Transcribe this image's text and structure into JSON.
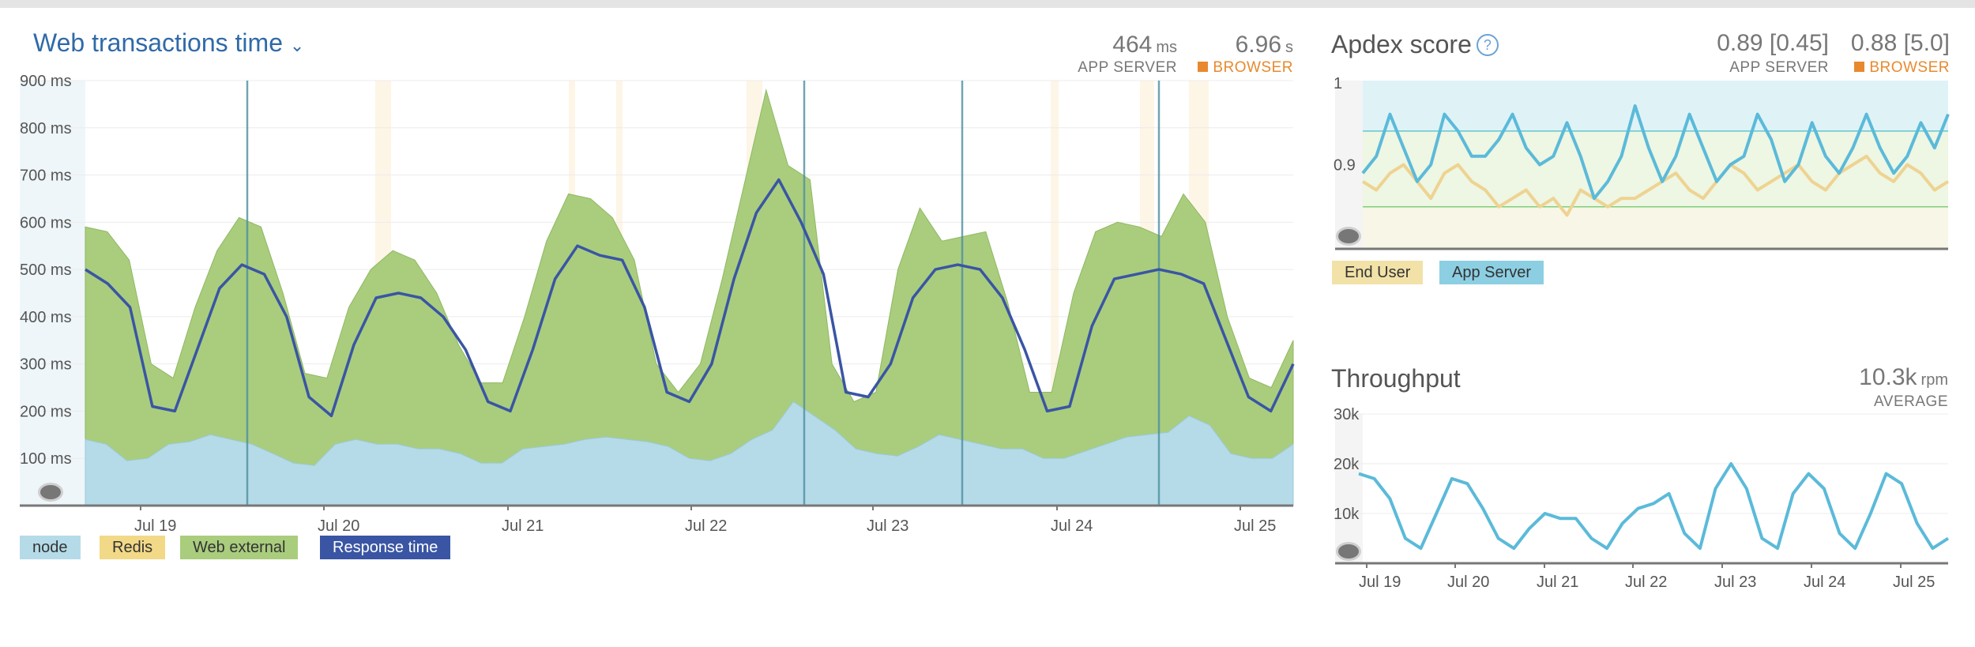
{
  "colors": {
    "node": "#b5dbe8",
    "redis": "#f2d987",
    "web_external": "#a9cd7d",
    "response_time": "#3a55a4",
    "app_server_line": "#5bbad9",
    "end_user_line": "#eed391",
    "accent_blue": "#2f6aa8",
    "browser_orange": "#e8892e"
  },
  "main_panel": {
    "title": "Web transactions time",
    "dropdown_icon": "chevron-down-icon",
    "app_server_value": "464",
    "app_server_unit": "ms",
    "app_server_caption": "APP SERVER",
    "browser_value": "6.96",
    "browser_unit": "s",
    "browser_caption": "BROWSER",
    "legend": [
      "node",
      "Redis",
      "Web external",
      "Response time"
    ]
  },
  "apdex_panel": {
    "title": "Apdex score",
    "help_icon": "question-circle-icon",
    "app_server_value": "0.89 [0.45]",
    "app_server_caption": "APP SERVER",
    "browser_value": "0.88 [5.0]",
    "browser_caption": "BROWSER",
    "legend": [
      "End User",
      "App Server"
    ]
  },
  "throughput_panel": {
    "title": "Throughput",
    "average_value": "10.3k",
    "average_unit": "rpm",
    "average_caption": "AVERAGE"
  },
  "chart_data": [
    {
      "type": "area",
      "title": "Web transactions time",
      "ylim": [
        0,
        900
      ],
      "yticks": [
        "900 ms",
        "800 ms",
        "700 ms",
        "600 ms",
        "500 ms",
        "400 ms",
        "300 ms",
        "200 ms",
        "100 ms"
      ],
      "xticks": [
        "Jul 19",
        "Jul 20",
        "Jul 21",
        "Jul 22",
        "Jul 23",
        "Jul 24",
        "Jul 25"
      ],
      "grid": true,
      "legend_position": "bottom-left",
      "series": [
        {
          "name": "node",
          "values": [
            140,
            130,
            95,
            100,
            130,
            135,
            150,
            140,
            130,
            110,
            90,
            85,
            130,
            140,
            130,
            130,
            120,
            120,
            110,
            90,
            90,
            120,
            125,
            130,
            140,
            145,
            140,
            135,
            125,
            100,
            95,
            110,
            140,
            160,
            220,
            190,
            160,
            120,
            110,
            105,
            125,
            150,
            140,
            130,
            120,
            120,
            100,
            100,
            115,
            130,
            145,
            150,
            155,
            190,
            170,
            110,
            100,
            100,
            130
          ]
        },
        {
          "name": "Redis",
          "values": [
            0,
            0,
            0,
            0,
            0,
            0,
            0,
            0,
            0,
            0,
            0,
            0,
            0,
            0,
            0,
            0,
            0,
            0,
            0,
            0,
            0,
            0,
            0,
            0,
            0,
            0,
            0,
            0,
            0,
            0,
            0,
            0,
            0,
            0,
            0,
            0,
            0,
            0,
            0,
            0,
            0,
            0,
            0,
            0,
            0,
            0,
            0,
            0,
            0,
            0,
            0,
            0,
            0,
            0,
            0,
            0,
            0,
            0,
            0
          ]
        },
        {
          "name": "Web external",
          "values": [
            590,
            580,
            520,
            300,
            270,
            420,
            540,
            610,
            590,
            450,
            280,
            270,
            420,
            500,
            540,
            520,
            450,
            340,
            260,
            260,
            400,
            560,
            660,
            650,
            610,
            520,
            300,
            240,
            300,
            480,
            680,
            880,
            720,
            690,
            300,
            220,
            240,
            500,
            630,
            560,
            570,
            580,
            430,
            240,
            240,
            450,
            580,
            600,
            590,
            570,
            660,
            600,
            400,
            270,
            250,
            350
          ]
        },
        {
          "name": "Response time",
          "values": [
            500,
            470,
            420,
            210,
            200,
            330,
            460,
            510,
            490,
            400,
            230,
            190,
            340,
            440,
            450,
            440,
            400,
            330,
            220,
            200,
            330,
            480,
            550,
            530,
            520,
            420,
            240,
            220,
            300,
            480,
            620,
            690,
            600,
            490,
            240,
            230,
            300,
            440,
            500,
            510,
            500,
            440,
            330,
            200,
            210,
            380,
            480,
            490,
            500,
            490,
            470,
            350,
            230,
            200,
            300
          ]
        }
      ]
    },
    {
      "type": "line",
      "title": "Apdex score",
      "ylim": [
        0.8,
        1
      ],
      "yticks": [
        "1",
        "0.9"
      ],
      "series": [
        {
          "name": "End User",
          "values": [
            0.88,
            0.87,
            0.89,
            0.9,
            0.88,
            0.86,
            0.89,
            0.9,
            0.88,
            0.87,
            0.85,
            0.86,
            0.87,
            0.85,
            0.86,
            0.84,
            0.87,
            0.86,
            0.85,
            0.86,
            0.86,
            0.87,
            0.88,
            0.89,
            0.87,
            0.86,
            0.88,
            0.9,
            0.89,
            0.87,
            0.88,
            0.89,
            0.9,
            0.88,
            0.87,
            0.89,
            0.9,
            0.91,
            0.89,
            0.88,
            0.9,
            0.89,
            0.87,
            0.88
          ]
        },
        {
          "name": "App Server",
          "values": [
            0.89,
            0.91,
            0.96,
            0.92,
            0.88,
            0.9,
            0.96,
            0.94,
            0.91,
            0.91,
            0.93,
            0.96,
            0.92,
            0.9,
            0.91,
            0.95,
            0.91,
            0.86,
            0.88,
            0.91,
            0.97,
            0.92,
            0.88,
            0.91,
            0.96,
            0.92,
            0.88,
            0.9,
            0.91,
            0.96,
            0.93,
            0.88,
            0.9,
            0.95,
            0.91,
            0.89,
            0.92,
            0.96,
            0.92,
            0.89,
            0.91,
            0.95,
            0.92,
            0.96
          ]
        }
      ]
    },
    {
      "type": "line",
      "title": "Throughput",
      "ylim": [
        0,
        30000
      ],
      "yticks": [
        "30k",
        "20k",
        "10k"
      ],
      "xticks": [
        "Jul 19",
        "Jul 20",
        "Jul 21",
        "Jul 22",
        "Jul 23",
        "Jul 24",
        "Jul 25"
      ],
      "series": [
        {
          "name": "Throughput",
          "values": [
            18000,
            17000,
            13000,
            5000,
            3000,
            10000,
            17000,
            16000,
            11000,
            5000,
            3000,
            7000,
            10000,
            9000,
            9000,
            5000,
            3000,
            8000,
            11000,
            12000,
            14000,
            6000,
            3000,
            15000,
            20000,
            15000,
            5000,
            3000,
            14000,
            18000,
            15000,
            6000,
            3000,
            10000,
            18000,
            16000,
            8000,
            3000,
            5000
          ]
        }
      ]
    }
  ]
}
